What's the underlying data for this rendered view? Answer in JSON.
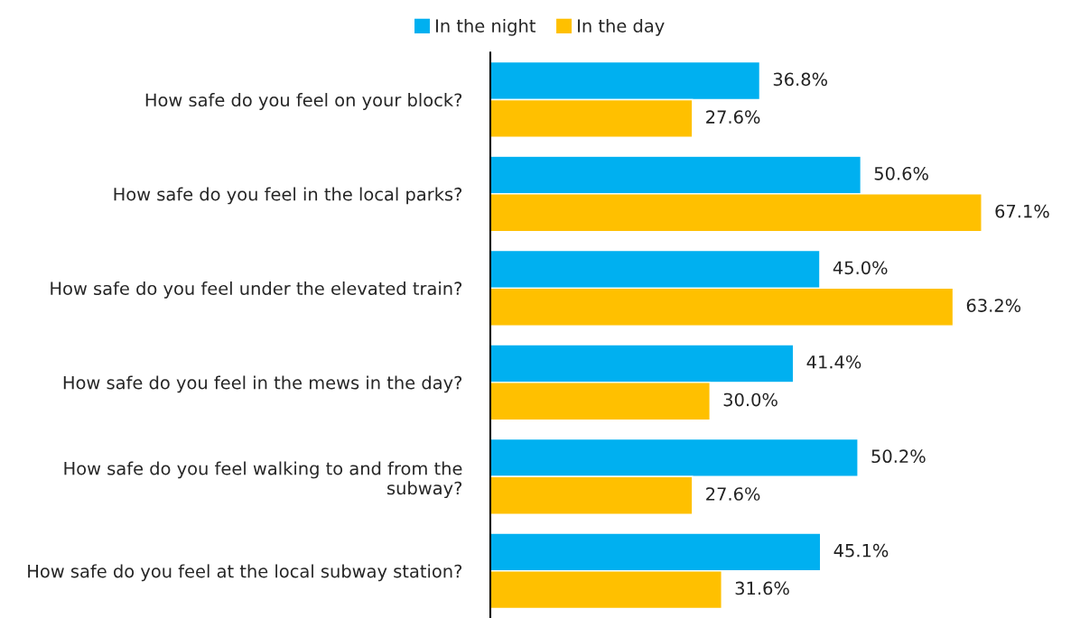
{
  "chart_data": {
    "type": "bar",
    "orientation": "horizontal",
    "categories": [
      "How safe do you feel on your block?",
      "How safe do you feel in the local parks?",
      "How safe do you feel under the elevated train?",
      "How safe do you feel in the mews in the day?",
      "How safe do you feel walking to and from the\nsubway?",
      "How safe do you feel at the local subway station?"
    ],
    "series": [
      {
        "name": "In the night",
        "color": "#00b0f0",
        "values": [
          36.8,
          50.6,
          45.0,
          41.4,
          50.2,
          45.1
        ],
        "value_labels": [
          "36.8%",
          "50.6%",
          "45.0%",
          "41.4%",
          "50.2%",
          "45.1%"
        ]
      },
      {
        "name": "In the day",
        "color": "#ffc000",
        "values": [
          27.6,
          67.1,
          63.2,
          30.0,
          27.6,
          31.6
        ],
        "value_labels": [
          "27.6%",
          "67.1%",
          "63.2%",
          "30.0%",
          "27.6%",
          "31.6%"
        ]
      }
    ],
    "legend": "top",
    "grid": false
  }
}
